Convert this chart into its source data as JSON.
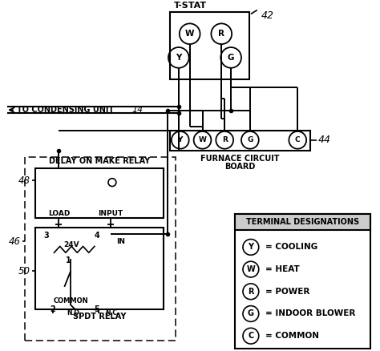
{
  "bg_color": "#ffffff",
  "lc": "#000000",
  "tstat_label": "T-STAT",
  "tstat_num": "42",
  "furnace_label1": "FURNACE CIRCUIT",
  "furnace_label2": "BOARD",
  "furnace_num": "44",
  "condensing_label": "TO CONDENSING UNIT",
  "condensing_num": "14",
  "delay_relay_label": "DELAY ON MAKE RELAY",
  "spdt_label": "SPDT RELAY",
  "num_46": "46",
  "num_48": "48",
  "num_50": "50",
  "terminal_title": "TERMINAL DESIGNATIONS",
  "terminals": [
    {
      "sym": "Y",
      "desc": "= COOLING"
    },
    {
      "sym": "W",
      "desc": "= HEAT"
    },
    {
      "sym": "R",
      "desc": "= POWER"
    },
    {
      "sym": "G",
      "desc": "= INDOOR BLOWER"
    },
    {
      "sym": "C",
      "desc": "= COMMON"
    }
  ],
  "furnace_syms": [
    "Y",
    "W",
    "R",
    "G",
    "C"
  ]
}
